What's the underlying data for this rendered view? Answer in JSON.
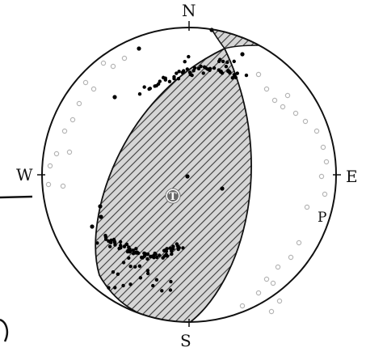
{
  "labels": {
    "north": "N",
    "south": "S",
    "west": "W",
    "east": "E",
    "p_axis": "P",
    "t_axis": "T"
  },
  "colors": {
    "outline": "#111111",
    "hatch": "#444444",
    "hatch_background": "#cfcfcf",
    "solid_points": "#000000",
    "open_points": "#b8b8b8"
  }
}
